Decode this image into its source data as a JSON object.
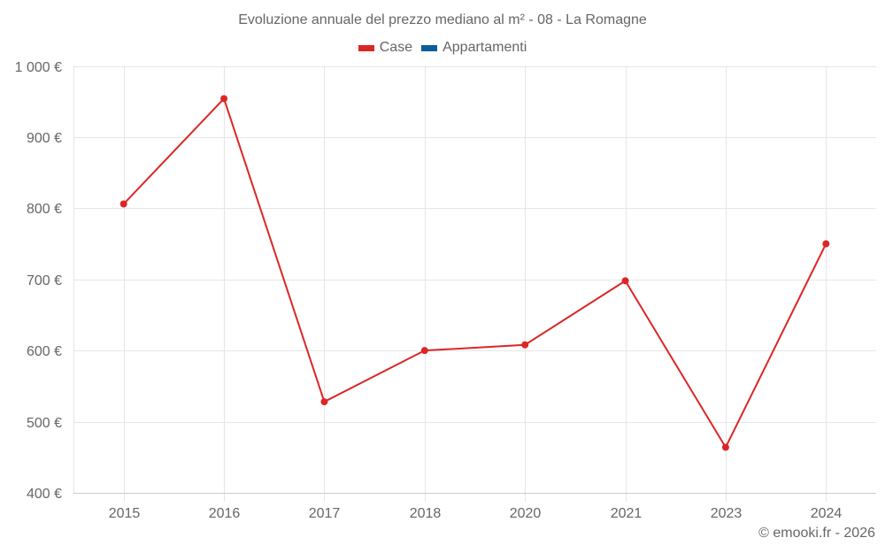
{
  "title": "Evoluzione annuale del prezzo mediano al m² - 08 - La Romagne",
  "legend": [
    {
      "label": "Case",
      "color": "#dc2626"
    },
    {
      "label": "Appartamenti",
      "color": "#0b5e9a"
    }
  ],
  "credit": "© emooki.fr - 2026",
  "chart_data": {
    "type": "line",
    "title": "Evoluzione annuale del prezzo mediano al m² - 08 - La Romagne",
    "xlabel": "",
    "ylabel": "",
    "categories": [
      "2015",
      "2016",
      "2017",
      "2018",
      "2020",
      "2021",
      "2023",
      "2024"
    ],
    "series": [
      {
        "name": "Case",
        "color": "#dc2626",
        "values": [
          806,
          954,
          528,
          600,
          608,
          698,
          464,
          750
        ]
      },
      {
        "name": "Appartamenti",
        "color": "#0b5e9a",
        "values": []
      }
    ],
    "ylim": [
      400,
      1000
    ],
    "yticks": [
      400,
      500,
      600,
      700,
      800,
      900,
      1000
    ],
    "ytick_labels": [
      "400 €",
      "500 €",
      "600 €",
      "700 €",
      "800 €",
      "900 €",
      "1 000 €"
    ],
    "grid": true,
    "legend_position": "top"
  }
}
